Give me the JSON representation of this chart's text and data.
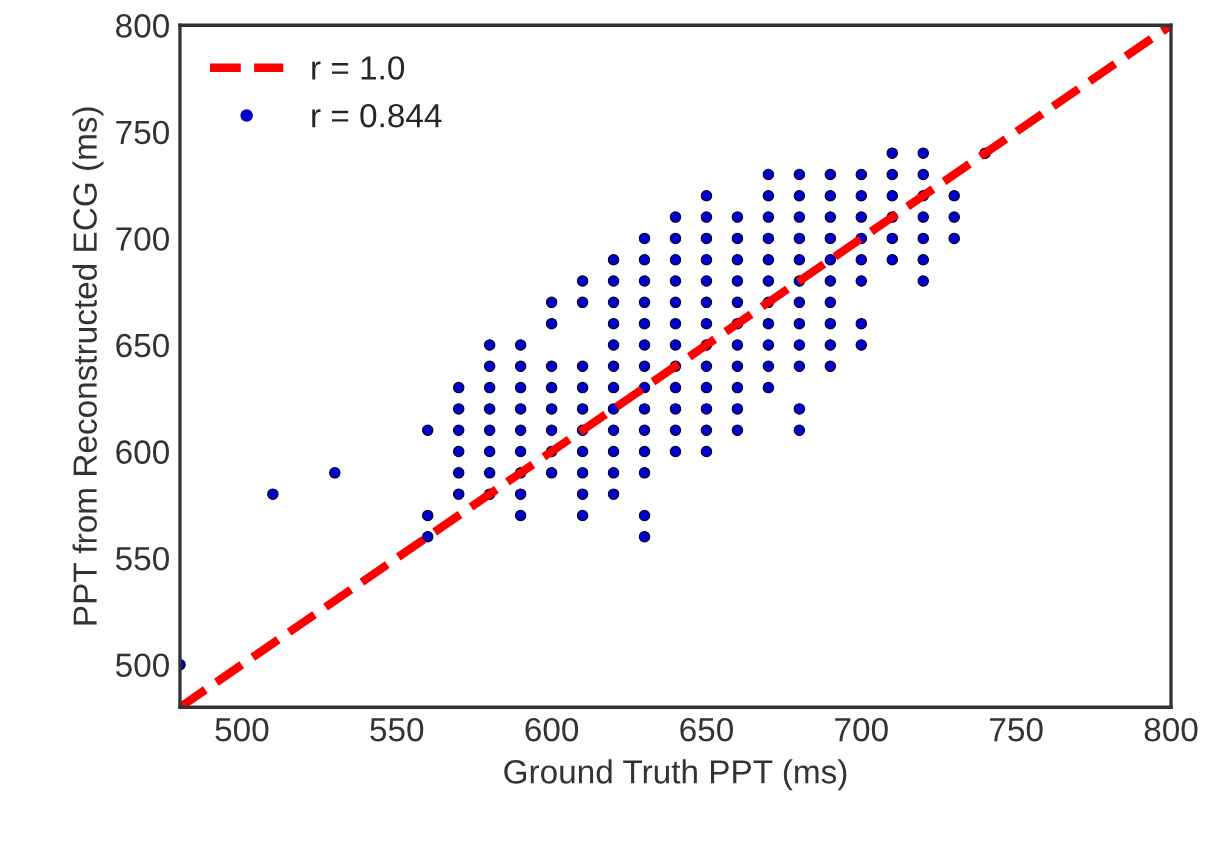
{
  "chart_data": {
    "type": "scatter",
    "xlabel": "Ground Truth PPT (ms)",
    "ylabel": "PPT from Reconstructed ECG (ms)",
    "xlim": [
      480,
      800
    ],
    "ylim": [
      480,
      800
    ],
    "xticks": [
      500,
      550,
      600,
      650,
      700,
      750,
      800
    ],
    "yticks": [
      500,
      550,
      600,
      650,
      700,
      750,
      800
    ],
    "grid": false,
    "legend": "top left",
    "series": [
      {
        "name": "r = 1.0",
        "type": "line",
        "line_style": "dashed",
        "color": "#ff0000",
        "x": [
          480,
          800
        ],
        "values": [
          480,
          800
        ]
      },
      {
        "name": "r = 0.844",
        "marker": "circle",
        "color": "#0000c8",
        "x": [
          480,
          510,
          530,
          560,
          560,
          560,
          570,
          570,
          570,
          570,
          570,
          570,
          580,
          580,
          580,
          580,
          580,
          580,
          580,
          580,
          590,
          590,
          590,
          590,
          590,
          590,
          590,
          590,
          590,
          600,
          600,
          600,
          600,
          600,
          600,
          600,
          600,
          610,
          610,
          610,
          610,
          610,
          610,
          610,
          610,
          610,
          610,
          620,
          620,
          620,
          620,
          620,
          620,
          620,
          620,
          620,
          620,
          620,
          620,
          630,
          630,
          630,
          630,
          630,
          630,
          630,
          630,
          630,
          630,
          630,
          630,
          630,
          630,
          640,
          640,
          640,
          640,
          640,
          640,
          640,
          640,
          640,
          640,
          640,
          640,
          650,
          650,
          650,
          650,
          650,
          650,
          650,
          650,
          650,
          650,
          650,
          650,
          650,
          660,
          660,
          660,
          660,
          660,
          660,
          660,
          660,
          660,
          660,
          660,
          670,
          670,
          670,
          670,
          670,
          670,
          670,
          670,
          670,
          670,
          670,
          680,
          680,
          680,
          680,
          680,
          680,
          680,
          680,
          680,
          680,
          680,
          680,
          690,
          690,
          690,
          690,
          690,
          690,
          690,
          690,
          690,
          690,
          700,
          700,
          700,
          700,
          700,
          700,
          700,
          700,
          710,
          710,
          710,
          710,
          710,
          710,
          720,
          720,
          720,
          720,
          720,
          720,
          720,
          730,
          730,
          730,
          740
        ],
        "values": [
          500,
          580,
          590,
          560,
          570,
          610,
          580,
          590,
          600,
          610,
          620,
          630,
          580,
          590,
          600,
          610,
          620,
          630,
          640,
          650,
          570,
          580,
          590,
          600,
          610,
          620,
          630,
          640,
          650,
          590,
          600,
          610,
          620,
          630,
          640,
          660,
          670,
          570,
          580,
          590,
          600,
          610,
          620,
          630,
          640,
          670,
          680,
          580,
          590,
          600,
          610,
          620,
          630,
          640,
          650,
          660,
          670,
          680,
          690,
          560,
          570,
          590,
          600,
          610,
          620,
          630,
          640,
          650,
          660,
          670,
          680,
          690,
          700,
          600,
          610,
          620,
          630,
          640,
          650,
          660,
          670,
          680,
          690,
          700,
          710,
          600,
          610,
          620,
          630,
          640,
          650,
          660,
          670,
          680,
          690,
          700,
          710,
          720,
          610,
          620,
          630,
          640,
          650,
          660,
          670,
          680,
          690,
          700,
          710,
          630,
          640,
          650,
          660,
          670,
          680,
          690,
          700,
          710,
          720,
          730,
          610,
          620,
          640,
          650,
          660,
          670,
          680,
          690,
          700,
          710,
          720,
          730,
          640,
          650,
          660,
          670,
          680,
          690,
          700,
          710,
          720,
          730,
          650,
          660,
          680,
          690,
          700,
          710,
          720,
          730,
          690,
          700,
          710,
          720,
          730,
          740,
          680,
          690,
          700,
          710,
          720,
          730,
          740,
          700,
          710,
          720,
          740
        ]
      }
    ]
  }
}
